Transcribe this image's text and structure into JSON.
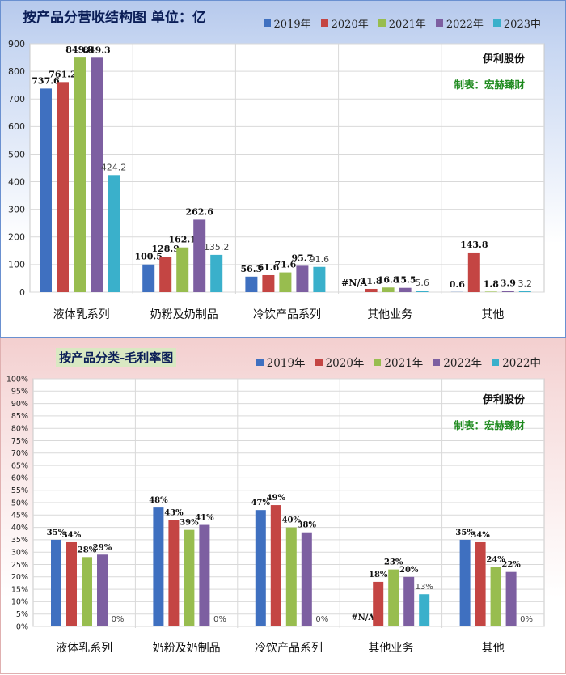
{
  "chart_data": [
    {
      "type": "bar",
      "title": "按产品分营收结构图 单位：亿",
      "categories": [
        "液体乳系列",
        "奶粉及奶制品",
        "冷饮产品系列",
        "其他业务",
        "其他"
      ],
      "series": [
        {
          "name": "2019年",
          "color": "#3f70c0",
          "values": [
            737.6,
            100.5,
            56.3,
            null,
            0.6
          ],
          "labels": [
            "737.6",
            "100.5",
            "56.3",
            "#N/A",
            "0.6"
          ]
        },
        {
          "name": "2020年",
          "color": "#c44543",
          "values": [
            761.2,
            128.9,
            61.6,
            11.8,
            143.8
          ],
          "labels": [
            "761.2",
            "128.9",
            "61.6",
            "11.8",
            "143.8"
          ]
        },
        {
          "name": "2021年",
          "color": "#98bd4f",
          "values": [
            849.8,
            162.1,
            71.6,
            16.8,
            1.8
          ],
          "labels": [
            "849.8",
            "162.1",
            "71.6",
            "16.8",
            "1.8"
          ]
        },
        {
          "name": "2022年",
          "color": "#7d5fa1",
          "values": [
            849.3,
            262.6,
            95.7,
            15.5,
            3.9
          ],
          "labels": [
            "849.3",
            "262.6",
            "95.7",
            "15.5",
            "3.9"
          ]
        },
        {
          "name": "2023中",
          "color": "#3ab0cb",
          "values": [
            424.2,
            135.2,
            91.6,
            5.6,
            3.2
          ],
          "labels": [
            "424.2",
            "135.2",
            "91.6",
            "5.6",
            "3.2"
          ]
        }
      ],
      "yticks": [
        "0",
        "100",
        "200",
        "300",
        "400",
        "500",
        "600",
        "700",
        "800",
        "900"
      ],
      "ylim": [
        0,
        900
      ],
      "grid": true,
      "legend": "top",
      "notes": {
        "company": "伊利股份",
        "author": "制表：宏赫臻财"
      }
    },
    {
      "type": "bar",
      "title": "按产品分类-毛利率图",
      "categories": [
        "液体乳系列",
        "奶粉及奶制品",
        "冷饮产品系列",
        "其他业务",
        "其他"
      ],
      "series": [
        {
          "name": "2019年",
          "color": "#3f70c0",
          "values": [
            35,
            48,
            47,
            null,
            35
          ],
          "labels": [
            "35%",
            "48%",
            "47%",
            "#N/A",
            "35%"
          ]
        },
        {
          "name": "2020年",
          "color": "#c44543",
          "values": [
            34,
            43,
            49,
            18,
            34
          ],
          "labels": [
            "34%",
            "43%",
            "49%",
            "18%",
            "34%"
          ]
        },
        {
          "name": "2021年",
          "color": "#98bd4f",
          "values": [
            28,
            39,
            40,
            23,
            24
          ],
          "labels": [
            "28%",
            "39%",
            "40%",
            "23%",
            "24%"
          ]
        },
        {
          "name": "2022年",
          "color": "#7d5fa1",
          "values": [
            29,
            41,
            38,
            20,
            22
          ],
          "labels": [
            "29%",
            "41%",
            "38%",
            "20%",
            "22%"
          ]
        },
        {
          "name": "2022中",
          "color": "#3ab0cb",
          "values": [
            0,
            0,
            0,
            13,
            0
          ],
          "labels": [
            "0%",
            "0%",
            "0%",
            "13%",
            "0%"
          ]
        }
      ],
      "yticks": [
        "0%",
        "5%",
        "10%",
        "15%",
        "20%",
        "25%",
        "30%",
        "35%",
        "40%",
        "45%",
        "50%",
        "55%",
        "60%",
        "65%",
        "70%",
        "75%",
        "80%",
        "85%",
        "90%",
        "95%",
        "100%"
      ],
      "ylim": [
        0,
        100
      ],
      "grid": true,
      "legend": "top",
      "notes": {
        "company": "伊利股份",
        "author": "制表：宏赫臻财"
      }
    }
  ]
}
